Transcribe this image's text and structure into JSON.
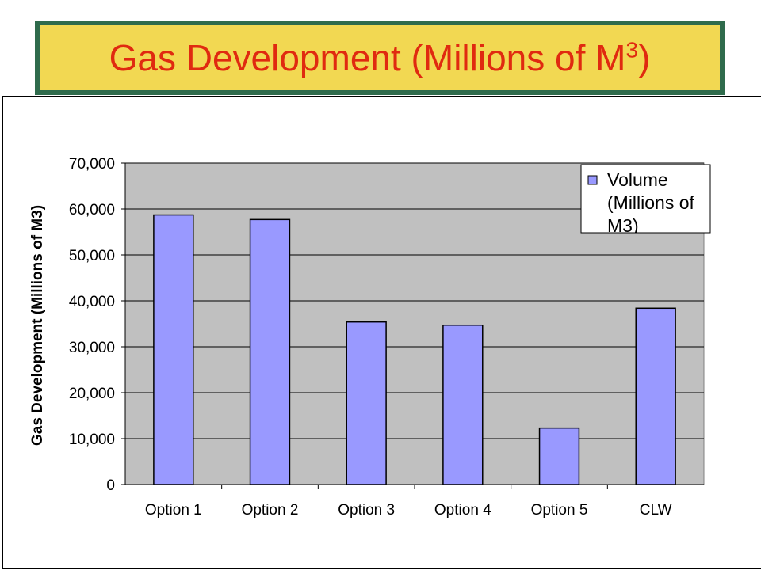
{
  "header": {
    "title_main": "Gas Development (Millions of M",
    "title_sup": "3",
    "title_close": ")"
  },
  "colors": {
    "title_bg": "#f2d852",
    "title_border": "#2f6b4c",
    "title_text": "#e02a10",
    "plot_bg": "#c0c0c0",
    "bar_fill": "#9999ff"
  },
  "chart_data": {
    "type": "bar",
    "categories": [
      "Option 1",
      "Option 2",
      "Option 3",
      "Option 4",
      "Option 5",
      "CLW"
    ],
    "series": [
      {
        "name": "Volume (Millions of M3)",
        "values": [
          58700,
          57700,
          35400,
          34700,
          12300,
          38400
        ]
      }
    ],
    "ylabel": "Gas Development (Millions of M3)",
    "xlabel": "",
    "ylim": [
      0,
      70000
    ],
    "yticks": [
      0,
      10000,
      20000,
      30000,
      40000,
      50000,
      60000,
      70000
    ],
    "ytick_labels": [
      "0",
      "10,000",
      "20,000",
      "30,000",
      "40,000",
      "50,000",
      "60,000",
      "70,000"
    ],
    "legend": {
      "lines": [
        "Volume",
        "(Millions of",
        "M3)"
      ],
      "position": "top-right"
    },
    "grid": true
  }
}
